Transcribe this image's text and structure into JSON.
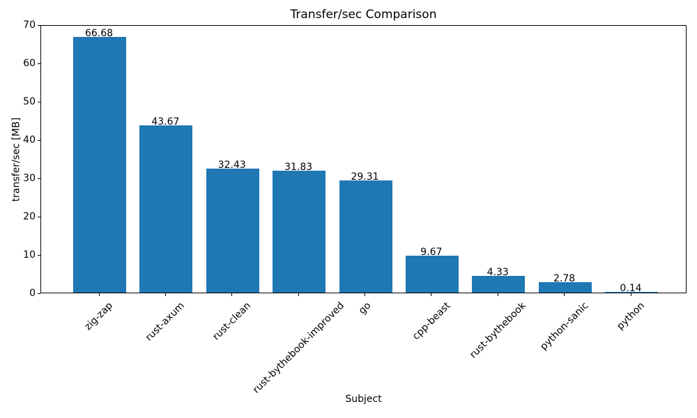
{
  "chart_data": {
    "type": "bar",
    "title": "Transfer/sec Comparison",
    "xlabel": "Subject",
    "ylabel": "transfer/sec [MB]",
    "categories": [
      "zig-zap",
      "rust-axum",
      "rust-clean",
      "rust-bythebook-improved",
      "go",
      "cpp-beast",
      "rust-bythebook",
      "python-sanic",
      "python"
    ],
    "values": [
      66.68,
      43.67,
      32.43,
      31.83,
      29.31,
      9.67,
      4.33,
      2.78,
      0.14
    ],
    "value_labels": [
      "66.68",
      "43.67",
      "32.43",
      "31.83",
      "29.31",
      "9.67",
      "4.33",
      "2.78",
      "0.14"
    ],
    "ylim": [
      0,
      70
    ],
    "yticks": [
      0,
      10,
      20,
      30,
      40,
      50,
      60,
      70
    ],
    "bar_color": "#1f77b4",
    "grid": false,
    "legend_position": "none"
  }
}
